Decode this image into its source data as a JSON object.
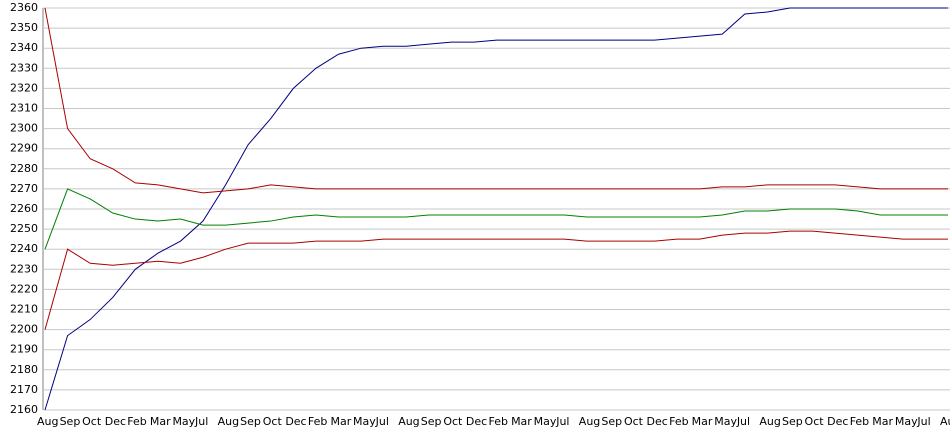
{
  "chart_data": {
    "type": "line",
    "categories": [
      "Aug",
      "Sep",
      "Oct",
      "Dec",
      "Feb",
      "Mar",
      "May",
      "Jul",
      "Aug",
      "Sep",
      "Oct",
      "Dec",
      "Feb",
      "Mar",
      "May",
      "Jul",
      "Aug",
      "Sep",
      "Oct",
      "Dec",
      "Feb",
      "Mar",
      "May",
      "Jul",
      "Aug",
      "Sep",
      "Oct",
      "Dec",
      "Feb",
      "Mar",
      "May",
      "Jul",
      "Aug",
      "Sep",
      "Oct",
      "Dec",
      "Feb",
      "Mar",
      "May",
      "Jul",
      "Aug"
    ],
    "series": [
      {
        "color": "#000080",
        "values": [
          2160,
          2197,
          2205,
          2216,
          2230,
          2238,
          2244,
          2254,
          2272,
          2292,
          2305,
          2320,
          2330,
          2337,
          2340,
          2341,
          2341,
          2342,
          2343,
          2343,
          2344,
          2344,
          2344,
          2344,
          2344,
          2344,
          2344,
          2344,
          2345,
          2346,
          2347,
          2357,
          2358,
          2360,
          2360,
          2360,
          2360,
          2360,
          2360,
          2360,
          2360
        ]
      },
      {
        "color": "#008000",
        "values": [
          2240,
          2270,
          2265,
          2258,
          2255,
          2254,
          2255,
          2252,
          2252,
          2253,
          2254,
          2256,
          2257,
          2256,
          2256,
          2256,
          2256,
          2257,
          2257,
          2257,
          2257,
          2257,
          2257,
          2257,
          2256,
          2256,
          2256,
          2256,
          2256,
          2256,
          2257,
          2259,
          2259,
          2260,
          2260,
          2260,
          2259,
          2257,
          2257,
          2257,
          2257
        ]
      },
      {
        "color": "#aa0000",
        "values": [
          2360,
          2300,
          2285,
          2280,
          2273,
          2272,
          2270,
          2268,
          2269,
          2270,
          2272,
          2271,
          2270,
          2270,
          2270,
          2270,
          2270,
          2270,
          2270,
          2270,
          2270,
          2270,
          2270,
          2270,
          2270,
          2270,
          2270,
          2270,
          2270,
          2270,
          2271,
          2271,
          2272,
          2272,
          2272,
          2272,
          2271,
          2270,
          2270,
          2270,
          2270
        ]
      },
      {
        "color": "#aa0000",
        "values": [
          2200,
          2240,
          2233,
          2232,
          2233,
          2234,
          2233,
          2236,
          2240,
          2243,
          2243,
          2243,
          2244,
          2244,
          2244,
          2245,
          2245,
          2245,
          2245,
          2245,
          2245,
          2245,
          2245,
          2245,
          2244,
          2244,
          2244,
          2244,
          2245,
          2245,
          2247,
          2248,
          2248,
          2249,
          2249,
          2248,
          2247,
          2246,
          2245,
          2245,
          2245
        ]
      }
    ],
    "ylim": [
      2160,
      2360
    ],
    "yticks": [
      2160,
      2170,
      2180,
      2190,
      2200,
      2210,
      2220,
      2230,
      2240,
      2250,
      2260,
      2270,
      2280,
      2290,
      2300,
      2310,
      2320,
      2330,
      2340,
      2350,
      2360
    ],
    "grid": true
  }
}
